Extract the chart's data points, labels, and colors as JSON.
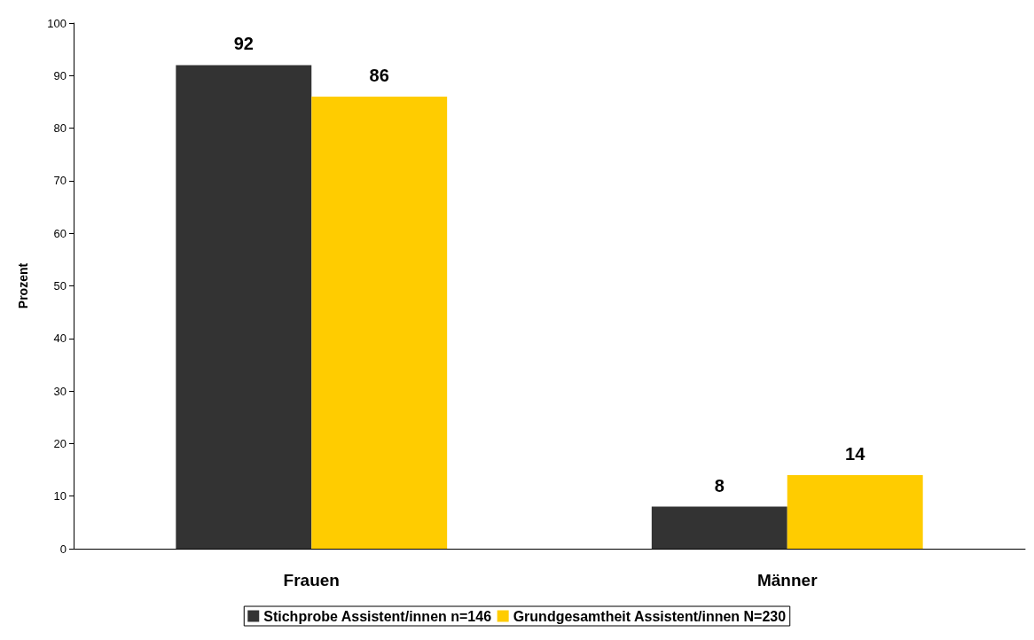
{
  "chart_data": {
    "type": "bar",
    "ylabel": "Prozent",
    "categories": [
      "Frauen",
      "Männer"
    ],
    "series": [
      {
        "name": "Stichprobe Assistent/innen n=146",
        "color": "#333333",
        "values": [
          92,
          8
        ]
      },
      {
        "name": "Grundgesamtheit Assistent/innen N=230",
        "color": "#ffcc00",
        "values": [
          86,
          14
        ]
      }
    ],
    "ylim": [
      0,
      100
    ],
    "yticks": [
      0,
      10,
      20,
      30,
      40,
      50,
      60,
      70,
      80,
      90,
      100
    ],
    "grid": false,
    "legend": "bottom",
    "data_labels": true
  }
}
